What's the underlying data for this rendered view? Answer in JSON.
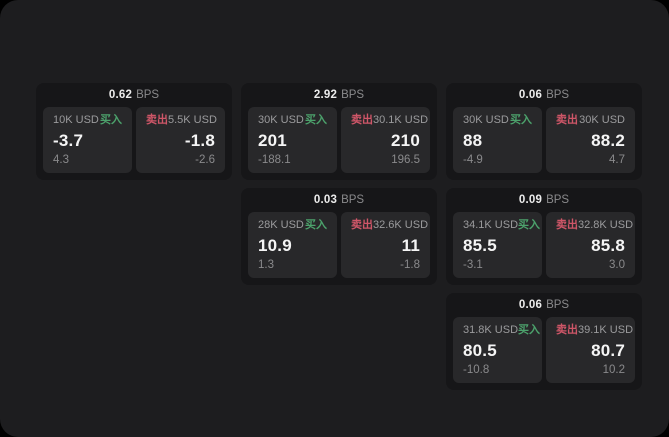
{
  "labels": {
    "bps_suffix": "BPS",
    "buy": "买入",
    "sell": "卖出"
  },
  "colors": {
    "page_bg": "#1d1d1f",
    "card_bg": "#161618",
    "panel_bg": "#28282a",
    "buy": "#4ca26c",
    "sell": "#cf5668"
  },
  "cards": [
    {
      "row": 1,
      "col": 1,
      "bps": "0.62",
      "buy": {
        "amount": "10K USD",
        "value": "-3.7",
        "sub": "4.3"
      },
      "sell": {
        "amount": "5.5K USD",
        "value": "-1.8",
        "sub": "-2.6"
      }
    },
    {
      "row": 1,
      "col": 2,
      "bps": "2.92",
      "buy": {
        "amount": "30K USD",
        "value": "201",
        "sub": "-188.1"
      },
      "sell": {
        "amount": "30.1K USD",
        "value": "210",
        "sub": "196.5"
      }
    },
    {
      "row": 1,
      "col": 3,
      "bps": "0.06",
      "buy": {
        "amount": "30K USD",
        "value": "88",
        "sub": "-4.9"
      },
      "sell": {
        "amount": "30K USD",
        "value": "88.2",
        "sub": "4.7"
      }
    },
    {
      "row": 2,
      "col": 2,
      "bps": "0.03",
      "buy": {
        "amount": "28K USD",
        "value": "10.9",
        "sub": "1.3"
      },
      "sell": {
        "amount": "32.6K USD",
        "value": "11",
        "sub": "-1.8"
      }
    },
    {
      "row": 2,
      "col": 3,
      "bps": "0.09",
      "buy": {
        "amount": "34.1K USD",
        "value": "85.5",
        "sub": "-3.1"
      },
      "sell": {
        "amount": "32.8K USD",
        "value": "85.8",
        "sub": "3.0"
      }
    },
    {
      "row": 3,
      "col": 3,
      "bps": "0.06",
      "buy": {
        "amount": "31.8K USD",
        "value": "80.5",
        "sub": "-10.8"
      },
      "sell": {
        "amount": "39.1K USD",
        "value": "80.7",
        "sub": "10.2"
      }
    }
  ]
}
